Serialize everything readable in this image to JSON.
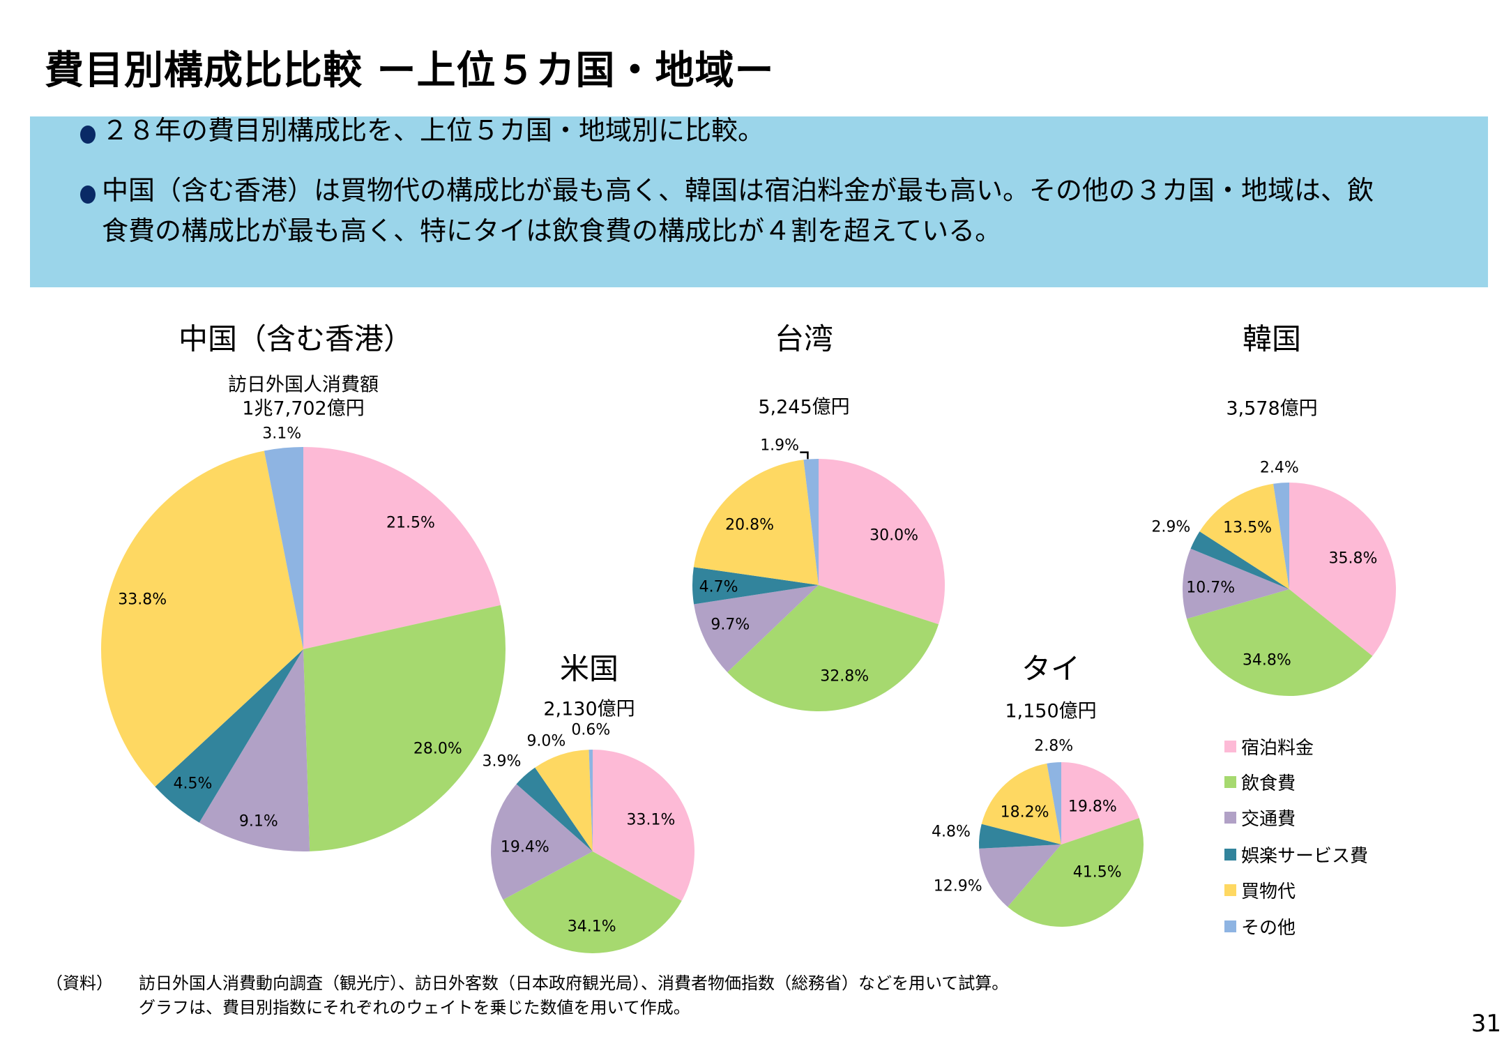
{
  "title": "費目別構成比比較 ー上位５カ国・地域ー",
  "summary": {
    "bullets": [
      "２８年の費目別構成比を、上位５カ国・地域別に比較。",
      "中国（含む香港）は買物代の構成比が最も高く、韓国は宿泊料金が最も高い。その他の３カ国・地域は、飲",
      "食費の構成比が最も高く、特にタイは飲食費の構成比が４割を超えている。"
    ]
  },
  "legend": [
    {
      "label": "宿泊料金",
      "color": "#fdbad6"
    },
    {
      "label": "飲食費",
      "color": "#a6d96f"
    },
    {
      "label": "交通費",
      "color": "#b1a1c6"
    },
    {
      "label": "娯楽サービス費",
      "color": "#32849c"
    },
    {
      "label": "買物代",
      "color": "#fed862"
    },
    {
      "label": "その他",
      "color": "#8eb4e2"
    }
  ],
  "chart_data": [
    {
      "type": "pie",
      "title": "中国（含む香港）",
      "subtitle": "訪日外国人消費額",
      "total": "1兆7,702億円",
      "categories": [
        "宿泊料金",
        "飲食費",
        "交通費",
        "娯楽サービス費",
        "買物代",
        "その他"
      ],
      "values": [
        21.5,
        28.0,
        9.1,
        4.5,
        33.8,
        3.1
      ],
      "labels": [
        "21.5%",
        "28.0%",
        "9.1%",
        "4.5%",
        "33.8%",
        "3.1%"
      ]
    },
    {
      "type": "pie",
      "title": "台湾",
      "total": "5,245億円",
      "categories": [
        "宿泊料金",
        "飲食費",
        "交通費",
        "娯楽サービス費",
        "買物代",
        "その他"
      ],
      "values": [
        30.0,
        32.8,
        9.7,
        4.7,
        20.8,
        1.9
      ],
      "labels": [
        "30.0%",
        "32.8%",
        "9.7%",
        "4.7%",
        "20.8%",
        "1.9%"
      ]
    },
    {
      "type": "pie",
      "title": "韓国",
      "total": "3,578億円",
      "categories": [
        "宿泊料金",
        "飲食費",
        "交通費",
        "娯楽サービス費",
        "買物代",
        "その他"
      ],
      "values": [
        35.8,
        34.8,
        10.7,
        2.9,
        13.5,
        2.4
      ],
      "labels": [
        "35.8%",
        "34.8%",
        "10.7%",
        "2.9%",
        "13.5%",
        "2.4%"
      ]
    },
    {
      "type": "pie",
      "title": "米国",
      "total": "2,130億円",
      "categories": [
        "宿泊料金",
        "飲食費",
        "交通費",
        "娯楽サービス費",
        "買物代",
        "その他"
      ],
      "values": [
        33.1,
        34.1,
        19.4,
        3.9,
        9.0,
        0.6
      ],
      "labels": [
        "33.1%",
        "34.1%",
        "19.4%",
        "3.9%",
        "9.0%",
        "0.6%"
      ]
    },
    {
      "type": "pie",
      "title": "タイ",
      "total": "1,150億円",
      "categories": [
        "宿泊料金",
        "飲食費",
        "交通費",
        "娯楽サービス費",
        "買物代",
        "その他"
      ],
      "values": [
        19.8,
        41.5,
        12.9,
        4.8,
        18.2,
        2.8
      ],
      "labels": [
        "19.8%",
        "41.5%",
        "12.9%",
        "4.8%",
        "18.2%",
        "2.8%"
      ]
    }
  ],
  "footnote": {
    "label": "（資料）",
    "line1": "訪日外国人消費動向調査（観光庁）、訪日外客数（日本政府観光局）、消費者物価指数（総務省）などを用いて試算。",
    "line2": "グラフは、費目別指数にそれぞれのウェイトを乗じた数値を用いて作成。"
  },
  "page_number": "31"
}
